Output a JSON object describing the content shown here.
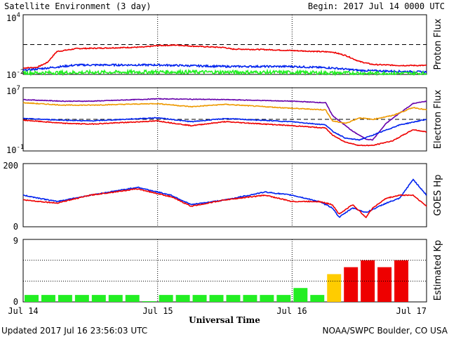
{
  "header": {
    "title": "Satellite Environment (3 day)",
    "begin": "Begin:  2017 Jul 14 0000 UTC"
  },
  "footer": {
    "updated": "Updated 2017 Jul 16 23:56:03 UTC",
    "credit": "NOAA/SWPC Boulder, CO USA"
  },
  "x_axis": {
    "label": "Universal Time",
    "ticks": [
      "Jul 14",
      "Jul 15",
      "Jul 16",
      "Jul 17"
    ],
    "range_days": [
      0,
      3
    ]
  },
  "colors": {
    "red": "#ee0000",
    "blue": "#0022ee",
    "green": "#22ee22",
    "orange": "#ee9900",
    "purple": "#6600aa",
    "kp_green": "#22ee22",
    "kp_yellow": "#ffcc00",
    "kp_red": "#ee0000"
  },
  "chart_data": [
    {
      "type": "line",
      "panel": "proton",
      "ylabel": "Proton Flux",
      "yscale": "log",
      "ylim_log10": [
        -2,
        4
      ],
      "tick_labels": {
        "top_base": "10",
        "top_exp": "4",
        "bottom_base": "10",
        "bottom_exp": "-2"
      },
      "threshold_log10": 1,
      "series": [
        {
          "color": "red",
          "noise": 0.05,
          "points": [
            [
              0,
              -1.35
            ],
            [
              0.1,
              -1.3
            ],
            [
              0.18,
              -0.8
            ],
            [
              0.25,
              0.3
            ],
            [
              0.4,
              0.6
            ],
            [
              0.6,
              0.65
            ],
            [
              0.9,
              0.75
            ],
            [
              1.0,
              0.9
            ],
            [
              1.15,
              0.95
            ],
            [
              1.25,
              0.85
            ],
            [
              1.5,
              0.7
            ],
            [
              1.55,
              0.55
            ],
            [
              1.8,
              0.5
            ],
            [
              2.0,
              0.4
            ],
            [
              2.3,
              0.25
            ],
            [
              2.4,
              -0.1
            ],
            [
              2.5,
              -0.7
            ],
            [
              2.6,
              -1.0
            ],
            [
              2.8,
              -1.1
            ],
            [
              3.0,
              -1.1
            ]
          ]
        },
        {
          "color": "blue",
          "noise": 0.09,
          "points": [
            [
              0,
              -1.6
            ],
            [
              0.4,
              -1.05
            ],
            [
              1.0,
              -1.05
            ],
            [
              1.5,
              -1.2
            ],
            [
              2.0,
              -1.2
            ],
            [
              2.3,
              -1.35
            ],
            [
              2.5,
              -1.6
            ],
            [
              3.0,
              -1.75
            ]
          ]
        },
        {
          "color": "green",
          "noise": 0.18,
          "points": [
            [
              0,
              -1.85
            ],
            [
              1.0,
              -1.75
            ],
            [
              2.0,
              -1.8
            ],
            [
              2.5,
              -1.88
            ],
            [
              3.0,
              -1.9
            ]
          ]
        }
      ]
    },
    {
      "type": "line",
      "panel": "electron",
      "ylabel": "Electron Flux",
      "yscale": "log",
      "ylim_log10": [
        -1,
        7
      ],
      "tick_labels": {
        "top_base": "10",
        "top_exp": "7",
        "bottom_base": "10",
        "bottom_exp": "-1"
      },
      "threshold_log10": 3,
      "series": [
        {
          "color": "purple",
          "noise": 0.04,
          "points": [
            [
              0,
              5.5
            ],
            [
              0.3,
              5.3
            ],
            [
              0.5,
              5.3
            ],
            [
              1.0,
              5.6
            ],
            [
              1.5,
              5.5
            ],
            [
              2.0,
              5.3
            ],
            [
              2.25,
              5.1
            ],
            [
              2.3,
              3.5
            ],
            [
              2.45,
              1.5
            ],
            [
              2.55,
              0.5
            ],
            [
              2.6,
              0.4
            ],
            [
              2.7,
              2.5
            ],
            [
              2.8,
              3.8
            ],
            [
              2.9,
              5.0
            ],
            [
              3.0,
              5.3
            ]
          ]
        },
        {
          "color": "orange",
          "noise": 0.05,
          "points": [
            [
              0,
              5.1
            ],
            [
              0.3,
              4.8
            ],
            [
              0.5,
              4.8
            ],
            [
              1.0,
              5.0
            ],
            [
              1.25,
              4.6
            ],
            [
              1.5,
              4.9
            ],
            [
              2.0,
              4.4
            ],
            [
              2.25,
              4.2
            ],
            [
              2.3,
              2.8
            ],
            [
              2.4,
              2.5
            ],
            [
              2.5,
              3.2
            ],
            [
              2.6,
              3.0
            ],
            [
              2.75,
              3.5
            ],
            [
              2.9,
              4.5
            ],
            [
              3.0,
              4.2
            ]
          ]
        },
        {
          "color": "blue",
          "noise": 0.05,
          "points": [
            [
              0,
              3.1
            ],
            [
              0.3,
              2.9
            ],
            [
              0.5,
              2.8
            ],
            [
              1.0,
              3.2
            ],
            [
              1.25,
              2.7
            ],
            [
              1.5,
              3.1
            ],
            [
              2.0,
              2.7
            ],
            [
              2.25,
              2.3
            ],
            [
              2.3,
              1.5
            ],
            [
              2.4,
              0.6
            ],
            [
              2.5,
              0.4
            ],
            [
              2.6,
              1.0
            ],
            [
              2.8,
              2.3
            ],
            [
              3.0,
              3.0
            ]
          ]
        },
        {
          "color": "red",
          "noise": 0.05,
          "points": [
            [
              0,
              2.9
            ],
            [
              0.3,
              2.5
            ],
            [
              0.5,
              2.4
            ],
            [
              1.0,
              2.8
            ],
            [
              1.25,
              2.2
            ],
            [
              1.5,
              2.7
            ],
            [
              2.0,
              2.2
            ],
            [
              2.25,
              1.9
            ],
            [
              2.3,
              1.0
            ],
            [
              2.4,
              0.1
            ],
            [
              2.5,
              -0.3
            ],
            [
              2.6,
              -0.3
            ],
            [
              2.75,
              0.3
            ],
            [
              2.9,
              1.7
            ],
            [
              3.0,
              1.4
            ]
          ]
        }
      ]
    },
    {
      "type": "line",
      "panel": "goes_hp",
      "ylabel": "GOES Hp",
      "ylim": [
        0,
        200
      ],
      "ticks": [
        "0",
        "200"
      ],
      "series": [
        {
          "color": "blue",
          "noise": 1.5,
          "points": [
            [
              0,
              100
            ],
            [
              0.25,
              80
            ],
            [
              0.5,
              100
            ],
            [
              0.85,
              125
            ],
            [
              1.1,
              100
            ],
            [
              1.25,
              70
            ],
            [
              1.5,
              85
            ],
            [
              1.8,
              110
            ],
            [
              2.0,
              100
            ],
            [
              2.2,
              80
            ],
            [
              2.3,
              60
            ],
            [
              2.35,
              30
            ],
            [
              2.45,
              60
            ],
            [
              2.55,
              45
            ],
            [
              2.6,
              55
            ],
            [
              2.7,
              75
            ],
            [
              2.8,
              90
            ],
            [
              2.9,
              150
            ],
            [
              3.0,
              100
            ]
          ]
        },
        {
          "color": "red",
          "noise": 1.5,
          "points": [
            [
              0,
              85
            ],
            [
              0.25,
              75
            ],
            [
              0.5,
              100
            ],
            [
              0.85,
              120
            ],
            [
              1.1,
              95
            ],
            [
              1.25,
              65
            ],
            [
              1.5,
              85
            ],
            [
              1.8,
              100
            ],
            [
              2.0,
              80
            ],
            [
              2.2,
              80
            ],
            [
              2.3,
              70
            ],
            [
              2.35,
              40
            ],
            [
              2.45,
              70
            ],
            [
              2.55,
              30
            ],
            [
              2.6,
              60
            ],
            [
              2.7,
              90
            ],
            [
              2.8,
              100
            ],
            [
              2.9,
              100
            ],
            [
              3.0,
              65
            ]
          ]
        }
      ]
    },
    {
      "type": "bar",
      "panel": "kp",
      "ylabel": "Estimated Kp",
      "ylim": [
        0,
        9
      ],
      "ticks": [
        "0",
        "9"
      ],
      "bar_width_hours": 3,
      "values": [
        1,
        1,
        1,
        1,
        1,
        1,
        1,
        0.1,
        1,
        1,
        1,
        1,
        1,
        1,
        1,
        1,
        2,
        1,
        4,
        5,
        6,
        5,
        6
      ],
      "colors": [
        "kp_green",
        "kp_green",
        "kp_green",
        "kp_green",
        "kp_green",
        "kp_green",
        "kp_green",
        "kp_green",
        "kp_green",
        "kp_green",
        "kp_green",
        "kp_green",
        "kp_green",
        "kp_green",
        "kp_green",
        "kp_green",
        "kp_green",
        "kp_green",
        "kp_yellow",
        "kp_red",
        "kp_red",
        "kp_red",
        "kp_red"
      ]
    }
  ]
}
